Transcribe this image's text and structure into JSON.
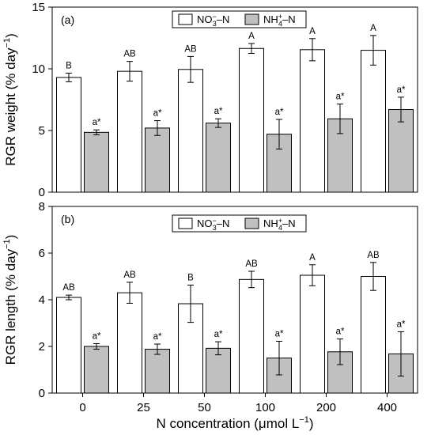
{
  "chart_data": [
    {
      "type": "bar",
      "panel_label": "(a)",
      "ylabel_main": "RGR weight (% day",
      "ylabel_sup": "−1",
      "ylabel_close": ")",
      "ylim": [
        0,
        15
      ],
      "yticks": [
        "0",
        "5",
        "10",
        "15"
      ],
      "categories": [
        "0",
        "25",
        "50",
        "100",
        "200",
        "400"
      ],
      "legend_position": "top-center",
      "series": [
        {
          "legend": {
            "base": "NO",
            "sub": "3",
            "sup": "−",
            "tail": "–N"
          },
          "color": "#ffffff",
          "values": [
            9.3,
            9.8,
            9.95,
            11.65,
            11.55,
            11.5
          ],
          "errors": [
            0.35,
            0.8,
            1.05,
            0.4,
            0.9,
            1.2
          ],
          "labels": [
            "B",
            "AB",
            "AB",
            "A",
            "A",
            "A"
          ]
        },
        {
          "legend": {
            "base": "NH",
            "sub": "4",
            "sup": "+",
            "tail": "–N"
          },
          "color": "#c0c0c0",
          "values": [
            4.85,
            5.2,
            5.6,
            4.7,
            5.95,
            6.7
          ],
          "errors": [
            0.2,
            0.6,
            0.35,
            1.2,
            1.2,
            1.0
          ],
          "labels": [
            "a*",
            "a*",
            "a*",
            "a*",
            "a*",
            "a*"
          ]
        }
      ]
    },
    {
      "type": "bar",
      "panel_label": "(b)",
      "ylabel_main": "RGR length (% day",
      "ylabel_sup": "−1",
      "ylabel_close": ")",
      "ylim": [
        0,
        8
      ],
      "yticks": [
        "0",
        "2",
        "4",
        "6",
        "8"
      ],
      "categories": [
        "0",
        "25",
        "50",
        "100",
        "200",
        "400"
      ],
      "xlabel_main": "N concentration (μmol L",
      "xlabel_sup": "−1",
      "xlabel_close": ")",
      "legend_position": "top-center",
      "series": [
        {
          "legend": {
            "base": "NO",
            "sub": "3",
            "sup": "−",
            "tail": "–N"
          },
          "color": "#ffffff",
          "values": [
            4.1,
            4.3,
            3.83,
            4.87,
            5.05,
            5.0
          ],
          "errors": [
            0.1,
            0.45,
            0.8,
            0.35,
            0.45,
            0.6
          ],
          "labels": [
            "AB",
            "AB",
            "B",
            "AB",
            "A",
            "AB"
          ]
        },
        {
          "legend": {
            "base": "NH",
            "sub": "4",
            "sup": "+",
            "tail": "–N"
          },
          "color": "#c0c0c0",
          "values": [
            2.0,
            1.88,
            1.92,
            1.5,
            1.77,
            1.68
          ],
          "errors": [
            0.12,
            0.22,
            0.28,
            0.72,
            0.55,
            0.95
          ],
          "labels": [
            "a*",
            "a*",
            "a*",
            "a*",
            "a*",
            "a*"
          ]
        }
      ]
    }
  ]
}
